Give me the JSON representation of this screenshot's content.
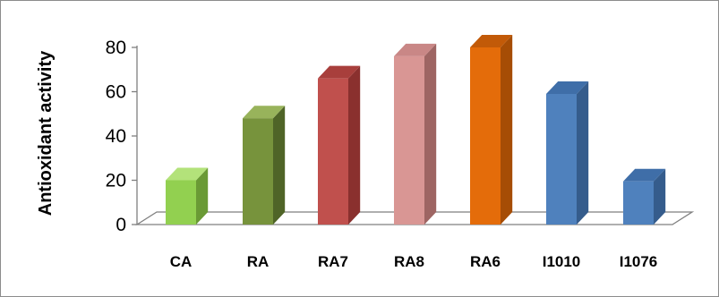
{
  "chart_data": {
    "type": "bar",
    "title": "",
    "xlabel": "",
    "ylabel": "Antioxidant activity",
    "ylim": [
      0,
      80
    ],
    "yticks": [
      0,
      20,
      40,
      60,
      80
    ],
    "grid": false,
    "legend": "none",
    "style": "3d-column",
    "categories": [
      "CA",
      "RA",
      "RA7",
      "RA8",
      "RA6",
      "I1010",
      "I1076"
    ],
    "values": [
      20,
      48,
      66,
      76,
      80,
      59,
      19.5
    ],
    "colors": [
      {
        "front": "#92d050",
        "side": "#6a9a35",
        "top": "#b3e27a"
      },
      {
        "front": "#77933c",
        "side": "#4f6427",
        "top": "#98b35b"
      },
      {
        "front": "#c0504d",
        "side": "#8a302e",
        "top": "#a83f3c"
      },
      {
        "front": "#d99694",
        "side": "#9e6563",
        "top": "#c98786"
      },
      {
        "front": "#e46c0a",
        "side": "#a64d05",
        "top": "#c25a08"
      },
      {
        "front": "#4f81bd",
        "side": "#355c8c",
        "top": "#3f6ea8"
      },
      {
        "front": "#4f81bd",
        "side": "#355c8c",
        "top": "#3f6ea8"
      }
    ],
    "floor_color": "#ffffff",
    "axis_color": "#7f7f7f"
  }
}
